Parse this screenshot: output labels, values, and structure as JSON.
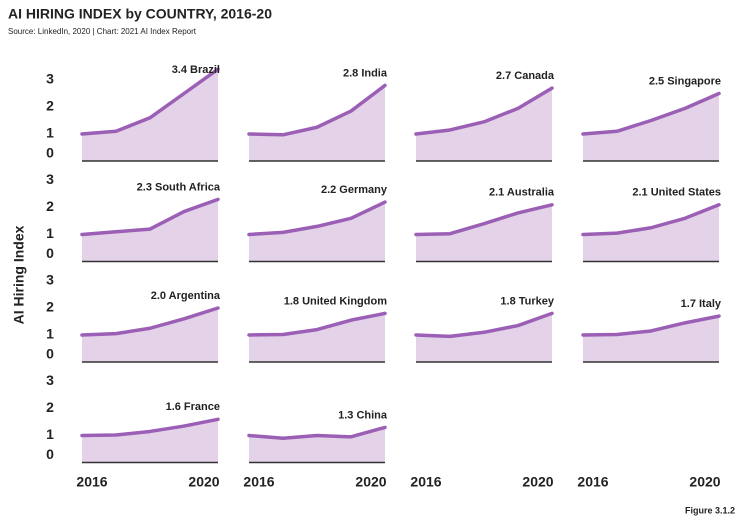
{
  "title": "AI HIRING INDEX by COUNTRY, 2016-20",
  "source": "Source: LinkedIn, 2020 | Chart: 2021 AI Index Report",
  "y_label": "AI Hiring Index",
  "figure": "Figure 3.1.2",
  "chart_data": [
    {
      "type": "area",
      "annotation": "3.4 Brazil",
      "x": [
        2016,
        2017,
        2018,
        2019,
        2020
      ],
      "values": [
        1,
        1.1,
        1.6,
        2.5,
        3.4
      ],
      "xlim": [
        2016,
        2020
      ],
      "xticks": [
        2016,
        2020
      ],
      "ylim": [
        0,
        3
      ],
      "yticks": [
        0,
        1,
        2,
        3
      ],
      "color": "#9b5fb5",
      "fill": "#e3d2e8"
    },
    {
      "type": "area",
      "annotation": "2.8 India",
      "x": [
        2016,
        2017,
        2018,
        2019,
        2020
      ],
      "values": [
        1,
        0.97,
        1.25,
        1.85,
        2.8
      ],
      "xlim": [
        2016,
        2020
      ],
      "xticks": [
        2016,
        2020
      ],
      "ylim": [
        0,
        3
      ],
      "yticks": [
        0,
        1,
        2,
        3
      ],
      "color": "#9b5fb5",
      "fill": "#e3d2e8"
    },
    {
      "type": "area",
      "annotation": "2.7 Canada",
      "x": [
        2016,
        2017,
        2018,
        2019,
        2020
      ],
      "values": [
        1,
        1.15,
        1.45,
        1.95,
        2.7
      ],
      "xlim": [
        2016,
        2020
      ],
      "xticks": [
        2016,
        2020
      ],
      "ylim": [
        0,
        3
      ],
      "yticks": [
        0,
        1,
        2,
        3
      ],
      "color": "#9b5fb5",
      "fill": "#e3d2e8"
    },
    {
      "type": "area",
      "annotation": "2.5 Singapore",
      "x": [
        2016,
        2017,
        2018,
        2019,
        2020
      ],
      "values": [
        1,
        1.1,
        1.5,
        1.95,
        2.5
      ],
      "xlim": [
        2016,
        2020
      ],
      "xticks": [
        2016,
        2020
      ],
      "ylim": [
        0,
        3
      ],
      "yticks": [
        0,
        1,
        2,
        3
      ],
      "color": "#9b5fb5",
      "fill": "#e3d2e8"
    },
    {
      "type": "area",
      "annotation": "2.3 South Africa",
      "x": [
        2016,
        2017,
        2018,
        2019,
        2020
      ],
      "values": [
        1,
        1.1,
        1.2,
        1.85,
        2.3
      ],
      "xlim": [
        2016,
        2020
      ],
      "xticks": [
        2016,
        2020
      ],
      "ylim": [
        0,
        3
      ],
      "yticks": [
        0,
        1,
        2,
        3
      ],
      "color": "#9b5fb5",
      "fill": "#e3d2e8"
    },
    {
      "type": "area",
      "annotation": "2.2 Germany",
      "x": [
        2016,
        2017,
        2018,
        2019,
        2020
      ],
      "values": [
        1,
        1.08,
        1.3,
        1.6,
        2.2
      ],
      "xlim": [
        2016,
        2020
      ],
      "xticks": [
        2016,
        2020
      ],
      "ylim": [
        0,
        3
      ],
      "yticks": [
        0,
        1,
        2,
        3
      ],
      "color": "#9b5fb5",
      "fill": "#e3d2e8"
    },
    {
      "type": "area",
      "annotation": "2.1 Australia",
      "x": [
        2016,
        2017,
        2018,
        2019,
        2020
      ],
      "values": [
        1,
        1.03,
        1.4,
        1.8,
        2.1
      ],
      "xlim": [
        2016,
        2020
      ],
      "xticks": [
        2016,
        2020
      ],
      "ylim": [
        0,
        3
      ],
      "yticks": [
        0,
        1,
        2,
        3
      ],
      "color": "#9b5fb5",
      "fill": "#e3d2e8"
    },
    {
      "type": "area",
      "annotation": "2.1 United States",
      "x": [
        2016,
        2017,
        2018,
        2019,
        2020
      ],
      "values": [
        1,
        1.05,
        1.25,
        1.6,
        2.1
      ],
      "xlim": [
        2016,
        2020
      ],
      "xticks": [
        2016,
        2020
      ],
      "ylim": [
        0,
        3
      ],
      "yticks": [
        0,
        1,
        2,
        3
      ],
      "color": "#9b5fb5",
      "fill": "#e3d2e8"
    },
    {
      "type": "area",
      "annotation": "2.0 Argentina",
      "x": [
        2016,
        2017,
        2018,
        2019,
        2020
      ],
      "values": [
        1,
        1.05,
        1.25,
        1.6,
        2.0
      ],
      "xlim": [
        2016,
        2020
      ],
      "xticks": [
        2016,
        2020
      ],
      "ylim": [
        0,
        3
      ],
      "yticks": [
        0,
        1,
        2,
        3
      ],
      "color": "#9b5fb5",
      "fill": "#e3d2e8"
    },
    {
      "type": "area",
      "annotation": "1.8 United Kingdom",
      "x": [
        2016,
        2017,
        2018,
        2019,
        2020
      ],
      "values": [
        1,
        1.02,
        1.2,
        1.55,
        1.8
      ],
      "xlim": [
        2016,
        2020
      ],
      "xticks": [
        2016,
        2020
      ],
      "ylim": [
        0,
        3
      ],
      "yticks": [
        0,
        1,
        2,
        3
      ],
      "color": "#9b5fb5",
      "fill": "#e3d2e8"
    },
    {
      "type": "area",
      "annotation": "1.8 Turkey",
      "x": [
        2016,
        2017,
        2018,
        2019,
        2020
      ],
      "values": [
        1,
        0.95,
        1.1,
        1.35,
        1.8
      ],
      "xlim": [
        2016,
        2020
      ],
      "xticks": [
        2016,
        2020
      ],
      "ylim": [
        0,
        3
      ],
      "yticks": [
        0,
        1,
        2,
        3
      ],
      "color": "#9b5fb5",
      "fill": "#e3d2e8"
    },
    {
      "type": "area",
      "annotation": "1.7 Italy",
      "x": [
        2016,
        2017,
        2018,
        2019,
        2020
      ],
      "values": [
        1,
        1.02,
        1.15,
        1.45,
        1.7
      ],
      "xlim": [
        2016,
        2020
      ],
      "xticks": [
        2016,
        2020
      ],
      "ylim": [
        0,
        3
      ],
      "yticks": [
        0,
        1,
        2,
        3
      ],
      "color": "#9b5fb5",
      "fill": "#e3d2e8"
    },
    {
      "type": "area",
      "annotation": "1.6 France",
      "x": [
        2016,
        2017,
        2018,
        2019,
        2020
      ],
      "values": [
        1,
        1.02,
        1.15,
        1.35,
        1.6
      ],
      "xlim": [
        2016,
        2020
      ],
      "xticks": [
        2016,
        2020
      ],
      "ylim": [
        0,
        3
      ],
      "yticks": [
        0,
        1,
        2,
        3
      ],
      "color": "#9b5fb5",
      "fill": "#e3d2e8"
    },
    {
      "type": "area",
      "annotation": "1.3 China",
      "x": [
        2016,
        2017,
        2018,
        2019,
        2020
      ],
      "values": [
        1,
        0.9,
        1.0,
        0.95,
        1.3
      ],
      "xlim": [
        2016,
        2020
      ],
      "xticks": [
        2016,
        2020
      ],
      "ylim": [
        0,
        3
      ],
      "yticks": [
        0,
        1,
        2,
        3
      ],
      "color": "#9b5fb5",
      "fill": "#e3d2e8"
    }
  ]
}
